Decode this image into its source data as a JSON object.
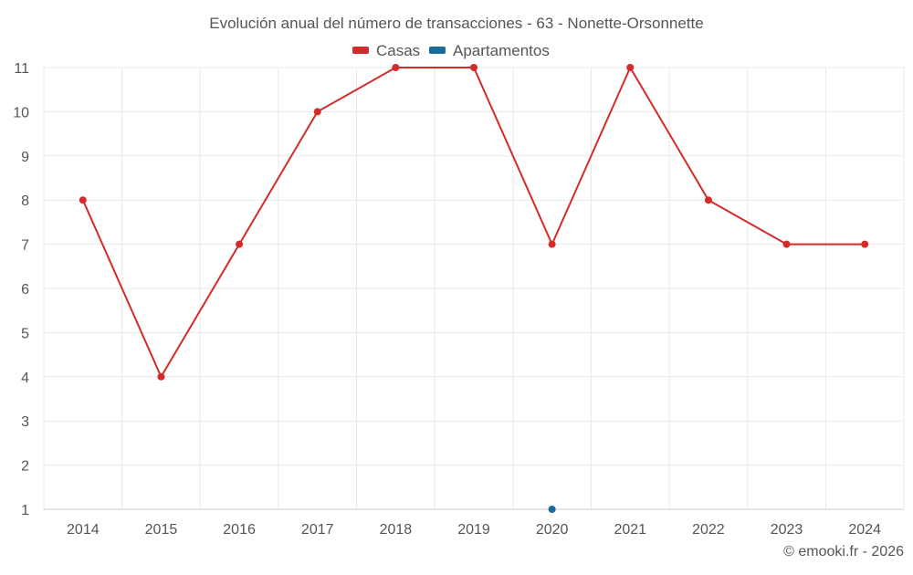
{
  "chart_data": {
    "type": "line",
    "title": "Evolución anual del número de transacciones - 63 - Nonette-Orsonnette",
    "xlabel": "",
    "ylabel": "",
    "categories": [
      "2014",
      "2015",
      "2016",
      "2017",
      "2018",
      "2019",
      "2020",
      "2021",
      "2022",
      "2023",
      "2024"
    ],
    "y_ticks": [
      "1",
      "2",
      "3",
      "4",
      "5",
      "6",
      "7",
      "8",
      "9",
      "10",
      "11"
    ],
    "ylim": [
      1,
      11
    ],
    "grid": true,
    "legend_position": "top-center",
    "series": [
      {
        "name": "Casas",
        "color": "#d42a2a",
        "values": [
          8,
          4,
          7,
          10,
          11,
          11,
          7,
          11,
          8,
          7,
          7
        ]
      },
      {
        "name": "Apartamentos",
        "color": "#1a6a9a",
        "values": [
          null,
          null,
          null,
          null,
          null,
          null,
          1,
          null,
          null,
          null,
          null
        ]
      }
    ]
  },
  "credit": "© emooki.fr - 2026"
}
